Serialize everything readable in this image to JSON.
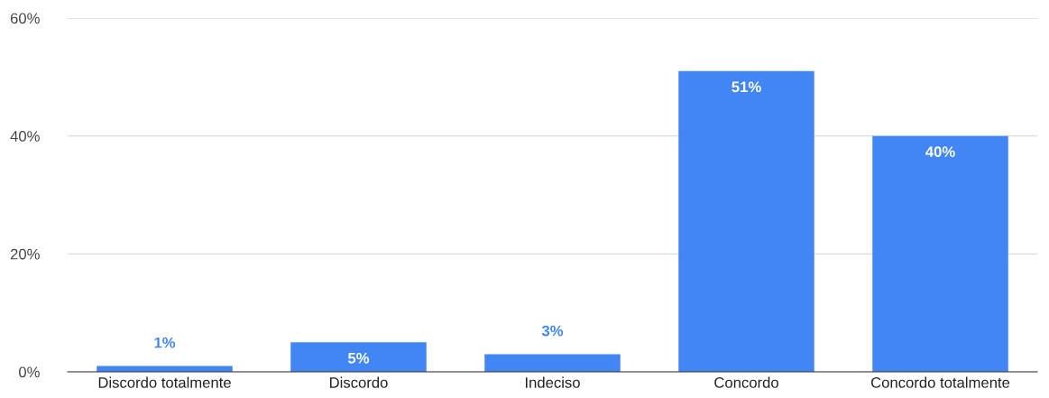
{
  "chart_data": {
    "type": "bar",
    "categories": [
      "Discordo totalmente",
      "Discordo",
      "Indeciso",
      "Concordo",
      "Concordo totalmente"
    ],
    "values": [
      1,
      5,
      3,
      51,
      40
    ],
    "value_labels": [
      "1%",
      "5%",
      "3%",
      "51%",
      "40%"
    ],
    "color": "#4285f4",
    "ylim": [
      0,
      60
    ],
    "yticks": [
      {
        "value": 0,
        "label": "0%"
      },
      {
        "value": 20,
        "label": "20%"
      },
      {
        "value": 40,
        "label": "40%"
      },
      {
        "value": 60,
        "label": "60%"
      }
    ],
    "grid": "y",
    "legend": false
  }
}
